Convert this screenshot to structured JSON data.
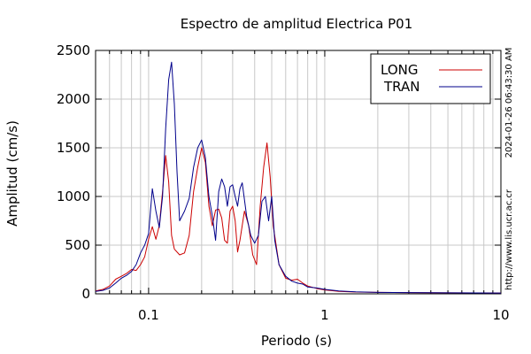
{
  "chart_data": {
    "type": "line",
    "title": "Espectro de amplitud Electrica P01",
    "xlabel": "Periodo (s)",
    "ylabel": "Amplitud (cm/s)",
    "x_scale": "log",
    "xlim": [
      0.05,
      10
    ],
    "ylim": [
      0,
      2500
    ],
    "x_ticks": [
      0.1,
      1,
      10
    ],
    "x_tick_labels": [
      "0.1",
      "1",
      "10"
    ],
    "y_ticks": [
      0,
      500,
      1000,
      1500,
      2000,
      2500
    ],
    "y_tick_labels": [
      "0",
      "500",
      "1000",
      "1500",
      "2000",
      "2500"
    ],
    "grid": true,
    "legend_position": "top-right",
    "side_labels": {
      "timestamp": "2024-01-26 06:43:30 AM",
      "url": "http://www.lis.ucr.ac.cr"
    },
    "series": [
      {
        "name": "LONG",
        "color": "#cc0000",
        "points": [
          [
            0.05,
            30
          ],
          [
            0.055,
            45
          ],
          [
            0.06,
            80
          ],
          [
            0.065,
            150
          ],
          [
            0.07,
            180
          ],
          [
            0.075,
            210
          ],
          [
            0.08,
            250
          ],
          [
            0.085,
            240
          ],
          [
            0.09,
            300
          ],
          [
            0.095,
            380
          ],
          [
            0.1,
            560
          ],
          [
            0.105,
            690
          ],
          [
            0.11,
            560
          ],
          [
            0.115,
            700
          ],
          [
            0.12,
            1050
          ],
          [
            0.125,
            1420
          ],
          [
            0.13,
            1150
          ],
          [
            0.135,
            600
          ],
          [
            0.14,
            460
          ],
          [
            0.15,
            400
          ],
          [
            0.16,
            420
          ],
          [
            0.17,
            600
          ],
          [
            0.18,
            1050
          ],
          [
            0.19,
            1300
          ],
          [
            0.2,
            1500
          ],
          [
            0.21,
            1350
          ],
          [
            0.22,
            900
          ],
          [
            0.23,
            700
          ],
          [
            0.24,
            860
          ],
          [
            0.25,
            870
          ],
          [
            0.26,
            780
          ],
          [
            0.27,
            550
          ],
          [
            0.28,
            520
          ],
          [
            0.29,
            850
          ],
          [
            0.3,
            900
          ],
          [
            0.31,
            750
          ],
          [
            0.32,
            430
          ],
          [
            0.33,
            550
          ],
          [
            0.35,
            850
          ],
          [
            0.37,
            700
          ],
          [
            0.39,
            400
          ],
          [
            0.41,
            300
          ],
          [
            0.43,
            900
          ],
          [
            0.45,
            1300
          ],
          [
            0.47,
            1550
          ],
          [
            0.49,
            1200
          ],
          [
            0.51,
            700
          ],
          [
            0.55,
            300
          ],
          [
            0.6,
            160
          ],
          [
            0.65,
            140
          ],
          [
            0.7,
            150
          ],
          [
            0.75,
            110
          ],
          [
            0.8,
            80
          ],
          [
            0.9,
            55
          ],
          [
            1.0,
            40
          ],
          [
            1.2,
            25
          ],
          [
            1.5,
            18
          ],
          [
            2.0,
            15
          ],
          [
            3.0,
            12
          ],
          [
            5.0,
            10
          ],
          [
            10.0,
            8
          ]
        ]
      },
      {
        "name": "TRAN",
        "color": "#00008b",
        "points": [
          [
            0.05,
            25
          ],
          [
            0.055,
            35
          ],
          [
            0.06,
            60
          ],
          [
            0.065,
            110
          ],
          [
            0.07,
            160
          ],
          [
            0.075,
            190
          ],
          [
            0.08,
            230
          ],
          [
            0.085,
            300
          ],
          [
            0.09,
            420
          ],
          [
            0.095,
            500
          ],
          [
            0.1,
            620
          ],
          [
            0.105,
            1080
          ],
          [
            0.11,
            850
          ],
          [
            0.115,
            680
          ],
          [
            0.12,
            1000
          ],
          [
            0.125,
            1700
          ],
          [
            0.13,
            2200
          ],
          [
            0.135,
            2380
          ],
          [
            0.14,
            1950
          ],
          [
            0.145,
            1250
          ],
          [
            0.15,
            750
          ],
          [
            0.16,
            850
          ],
          [
            0.17,
            980
          ],
          [
            0.18,
            1300
          ],
          [
            0.19,
            1500
          ],
          [
            0.2,
            1580
          ],
          [
            0.21,
            1400
          ],
          [
            0.22,
            1000
          ],
          [
            0.23,
            800
          ],
          [
            0.24,
            550
          ],
          [
            0.25,
            1050
          ],
          [
            0.26,
            1180
          ],
          [
            0.27,
            1100
          ],
          [
            0.28,
            900
          ],
          [
            0.29,
            1100
          ],
          [
            0.3,
            1120
          ],
          [
            0.31,
            1000
          ],
          [
            0.32,
            900
          ],
          [
            0.33,
            1080
          ],
          [
            0.34,
            1140
          ],
          [
            0.36,
            800
          ],
          [
            0.38,
            600
          ],
          [
            0.4,
            520
          ],
          [
            0.42,
            600
          ],
          [
            0.44,
            950
          ],
          [
            0.46,
            1000
          ],
          [
            0.48,
            750
          ],
          [
            0.5,
            1000
          ],
          [
            0.52,
            550
          ],
          [
            0.55,
            300
          ],
          [
            0.6,
            180
          ],
          [
            0.65,
            130
          ],
          [
            0.7,
            110
          ],
          [
            0.75,
            100
          ],
          [
            0.8,
            70
          ],
          [
            0.9,
            60
          ],
          [
            1.0,
            45
          ],
          [
            1.2,
            30
          ],
          [
            1.5,
            20
          ],
          [
            2.0,
            15
          ],
          [
            3.0,
            12
          ],
          [
            5.0,
            10
          ],
          [
            10.0,
            8
          ]
        ]
      }
    ]
  }
}
